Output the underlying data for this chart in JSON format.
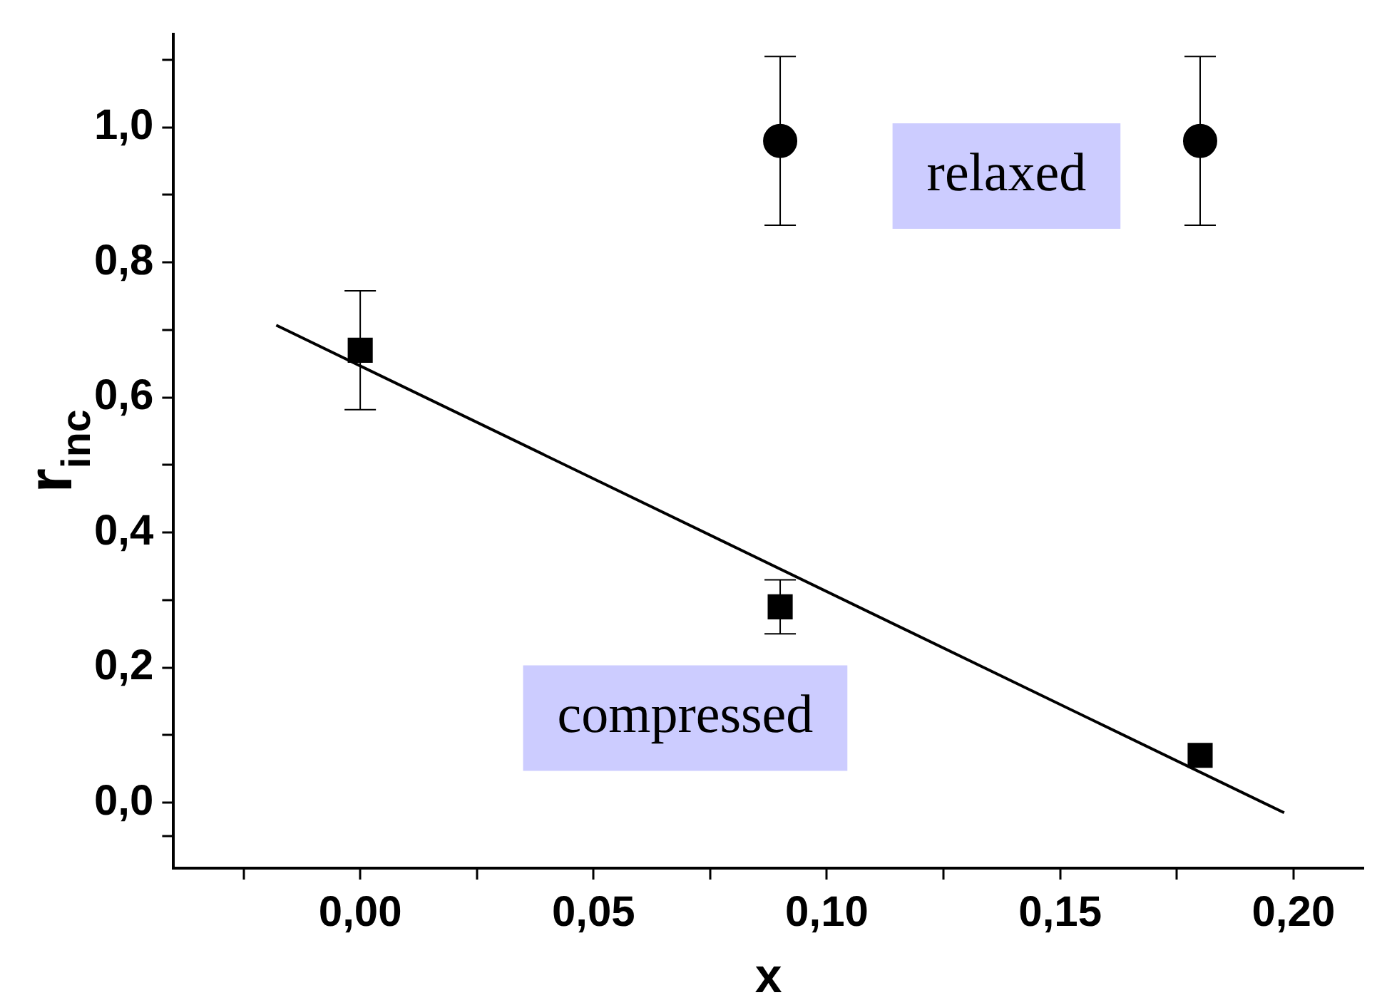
{
  "chart_data": {
    "type": "scatter",
    "xlabel": "x",
    "ylabel": "r$_{inc}$",
    "xlim": [
      -0.04,
      0.215
    ],
    "ylim": [
      -0.097,
      1.138
    ],
    "xticks": [
      {
        "value": -0.025,
        "label": null
      },
      {
        "value": 0,
        "label": "0,00"
      },
      {
        "value": 0.025,
        "label": null
      },
      {
        "value": 0.05,
        "label": "0,05"
      },
      {
        "value": 0.075,
        "label": null
      },
      {
        "value": 0.1,
        "label": "0,10"
      },
      {
        "value": 0.125,
        "label": null
      },
      {
        "value": 0.15,
        "label": "0,15"
      },
      {
        "value": 0.175,
        "label": null
      },
      {
        "value": 0.2,
        "label": "0,20"
      }
    ],
    "yticks": [
      {
        "value": -0.05,
        "label": null
      },
      {
        "value": 0,
        "label": "0,0"
      },
      {
        "value": 0.1,
        "label": null
      },
      {
        "value": 0.2,
        "label": "0,2"
      },
      {
        "value": 0.3,
        "label": null
      },
      {
        "value": 0.4,
        "label": "0,4"
      },
      {
        "value": 0.5,
        "label": null
      },
      {
        "value": 0.6,
        "label": "0,6"
      },
      {
        "value": 0.7,
        "label": null
      },
      {
        "value": 0.8,
        "label": "0,8"
      },
      {
        "value": 0.9,
        "label": null
      },
      {
        "value": 1.0,
        "label": "1,0"
      },
      {
        "value": 1.1,
        "label": null
      }
    ],
    "series": [
      {
        "type": "scatter",
        "marker": "square",
        "color": "#000000",
        "x": [
          0,
          0.09,
          0.18
        ],
        "values": [
          0.67,
          0.29,
          0.07
        ],
        "errors": [
          0.088,
          0.04,
          null
        ]
      },
      {
        "type": "scatter",
        "marker": "circle",
        "color": "#000000",
        "x": [
          0.09,
          0.18
        ],
        "values": [
          0.98,
          0.98
        ],
        "errors": [
          0.125,
          0.125
        ]
      },
      {
        "type": "line",
        "marker": "none",
        "color": "#000000",
        "x": [
          -0.018,
          0.198
        ],
        "values": [
          0.707,
          -0.015
        ]
      }
    ],
    "annotations": [
      "relaxed",
      "compressed"
    ],
    "grid": false,
    "legend": false
  }
}
